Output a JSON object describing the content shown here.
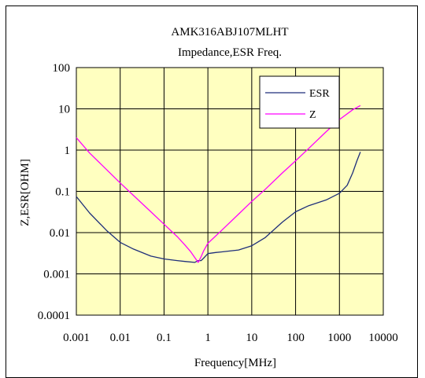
{
  "chart_data": {
    "type": "line",
    "title": "AMK316ABJ107MLHT",
    "subtitle": "Impedance,ESR Freq.",
    "xlabel": "Frequency[MHz]",
    "ylabel": "Z,ESR[OHM]",
    "x_scale": "log",
    "y_scale": "log",
    "xlim": [
      0.001,
      10000
    ],
    "ylim": [
      0.0001,
      100
    ],
    "x_ticks": [
      "0.001",
      "0.01",
      "0.1",
      "1",
      "10",
      "100",
      "1000",
      "10000"
    ],
    "y_ticks": [
      "100",
      "10",
      "1",
      "0.1",
      "0.01",
      "0.001",
      "0.0001"
    ],
    "grid": true,
    "plot_background": "#FFFFC0",
    "legend_position": "top-right",
    "series": [
      {
        "name": "ESR",
        "color": "#1F2F7A",
        "x": [
          0.001,
          0.002,
          0.005,
          0.01,
          0.02,
          0.05,
          0.1,
          0.2,
          0.3,
          0.5,
          0.6,
          0.7,
          0.8,
          1.0,
          1.5,
          2,
          5,
          10,
          20,
          50,
          100,
          200,
          500,
          1000,
          1500,
          2000,
          2500,
          3000
        ],
        "y": [
          0.075,
          0.03,
          0.011,
          0.0058,
          0.004,
          0.0027,
          0.0023,
          0.0021,
          0.002,
          0.0019,
          0.0021,
          0.0021,
          0.0024,
          0.0031,
          0.0033,
          0.0034,
          0.0038,
          0.0048,
          0.0075,
          0.018,
          0.032,
          0.045,
          0.062,
          0.09,
          0.14,
          0.28,
          0.55,
          0.9
        ]
      },
      {
        "name": "Z",
        "color": "#FF00FF",
        "x": [
          0.001,
          0.002,
          0.005,
          0.01,
          0.02,
          0.05,
          0.1,
          0.2,
          0.3,
          0.4,
          0.5,
          0.6,
          0.7,
          0.8,
          1.0,
          2,
          5,
          10,
          20,
          50,
          100,
          200,
          500,
          1000,
          2000,
          3000
        ],
        "y": [
          2.0,
          0.85,
          0.33,
          0.16,
          0.08,
          0.032,
          0.016,
          0.008,
          0.005,
          0.0035,
          0.0025,
          0.0019,
          0.0026,
          0.0036,
          0.0055,
          0.011,
          0.028,
          0.057,
          0.11,
          0.28,
          0.55,
          1.1,
          2.8,
          5.5,
          9.5,
          12
        ]
      }
    ]
  }
}
